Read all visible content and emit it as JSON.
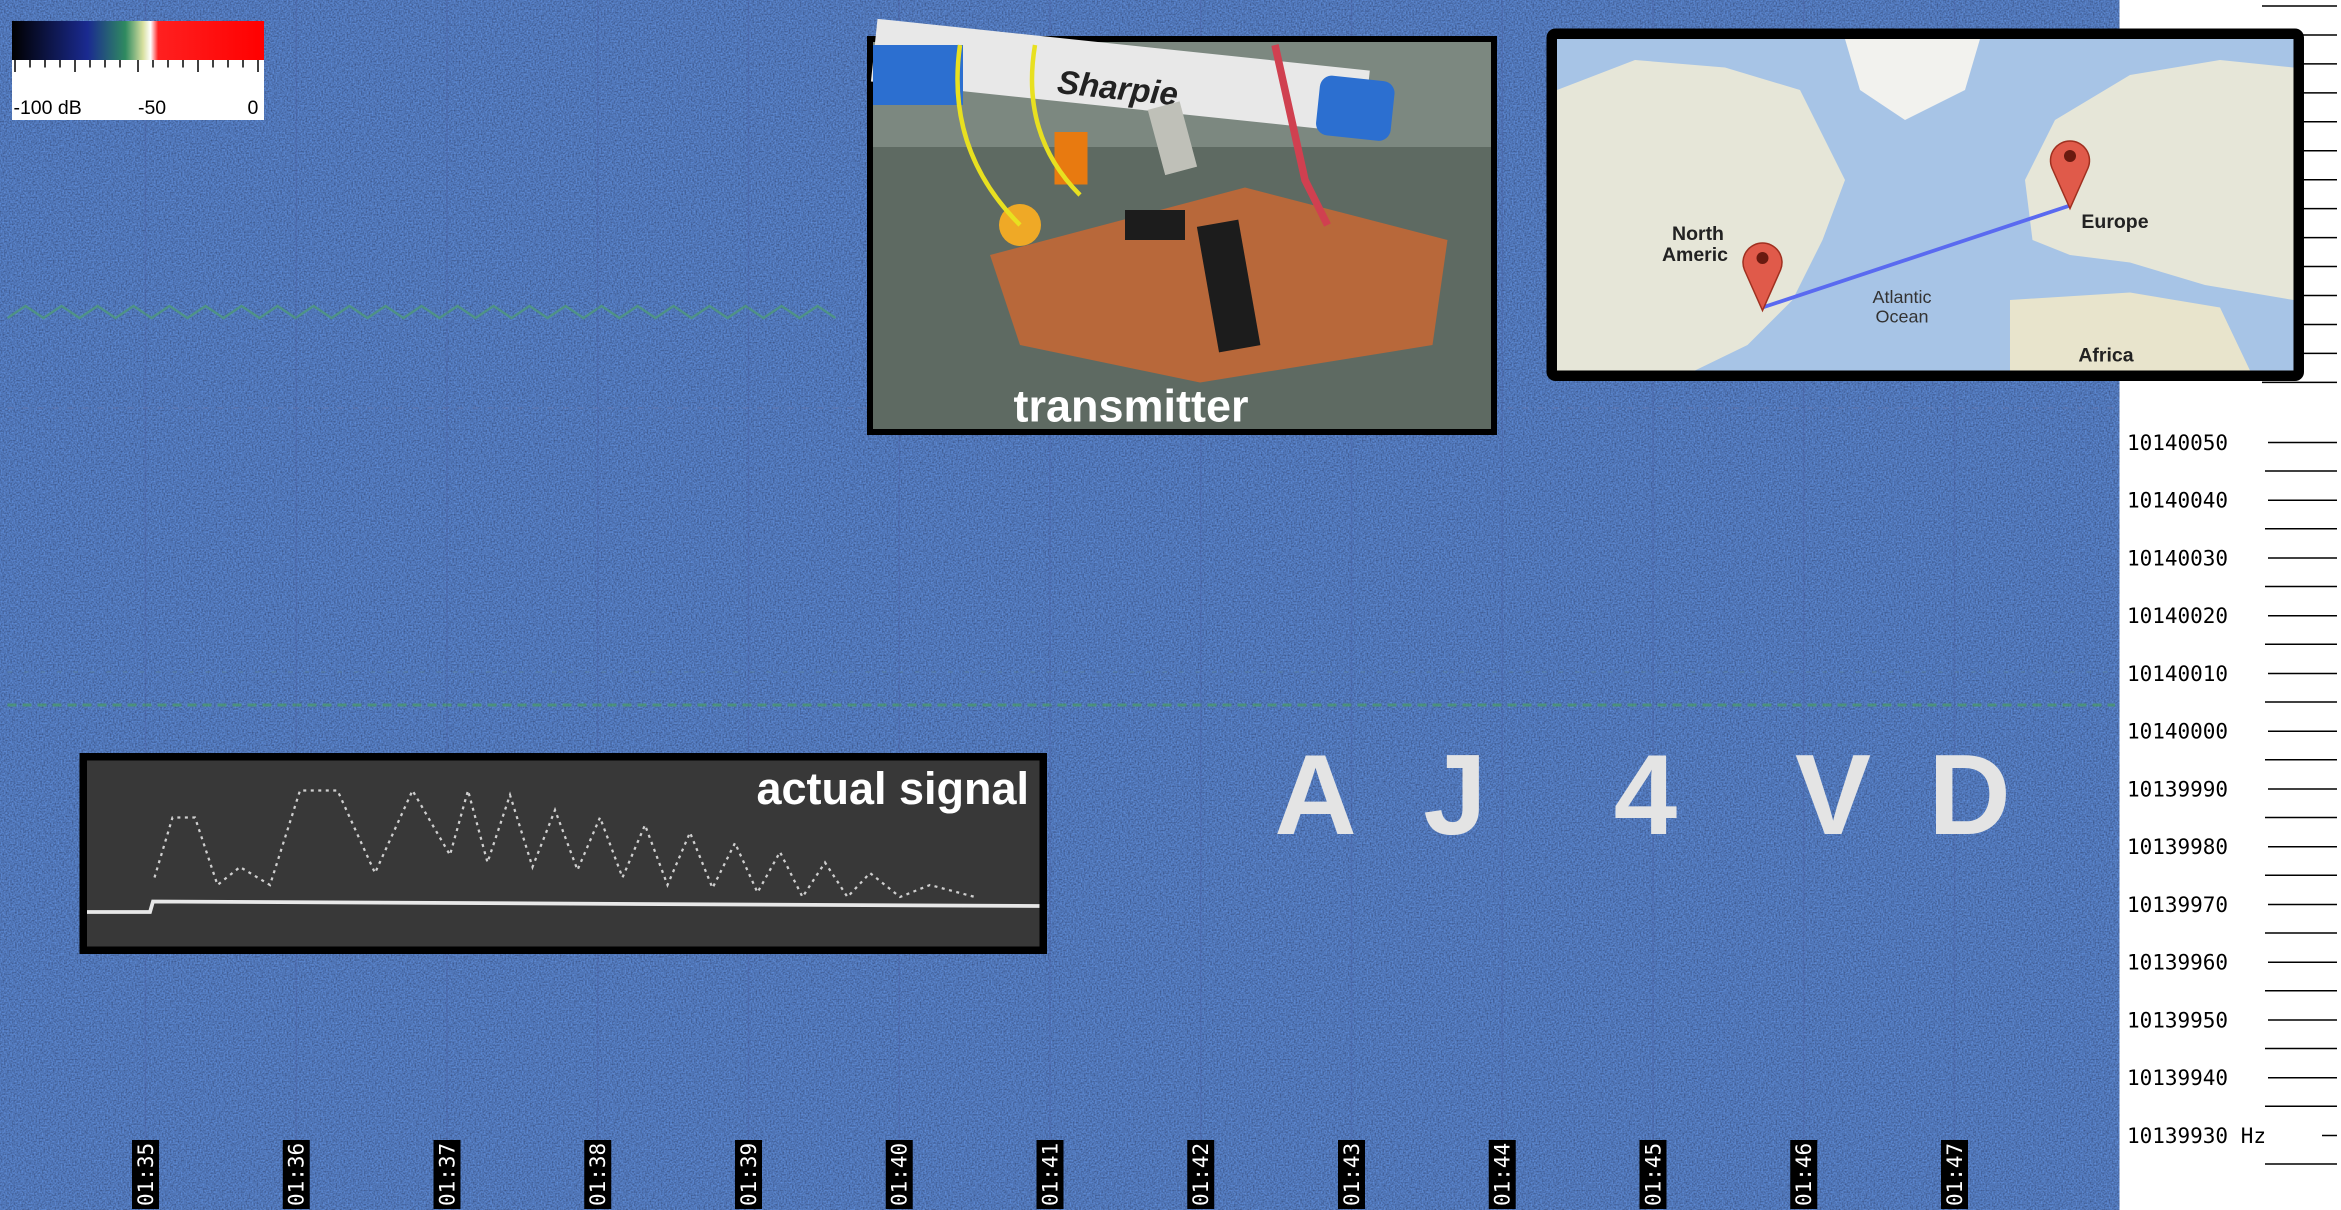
{
  "colorbar": {
    "labels": [
      "-100 dB",
      "-50",
      "0"
    ]
  },
  "frequency_axis": {
    "labels": [
      "10140050",
      "10140040",
      "10140030",
      "10140020",
      "10140010",
      "10140000",
      "10139990",
      "10139980",
      "10139970",
      "10139960",
      "10139950",
      "10139940",
      "10139930 Hz"
    ]
  },
  "time_axis": {
    "labels": [
      "01:35",
      "01:36",
      "01:37",
      "01:38",
      "01:39",
      "01:40",
      "01:41",
      "01:42",
      "01:43",
      "01:44",
      "01:45",
      "01:46",
      "01:47"
    ]
  },
  "transmitter_photo": {
    "marker_text": "Sharpie",
    "caption": "transmitter"
  },
  "map": {
    "north_america": [
      "North",
      "Americ"
    ],
    "europe": "Europe",
    "ocean": [
      "Atlantic",
      "Ocean"
    ],
    "africa": "Africa"
  },
  "signal_inset": {
    "caption": "actual signal"
  },
  "callsign": {
    "letters": [
      "A",
      "J",
      "4",
      "V",
      "D"
    ]
  }
}
